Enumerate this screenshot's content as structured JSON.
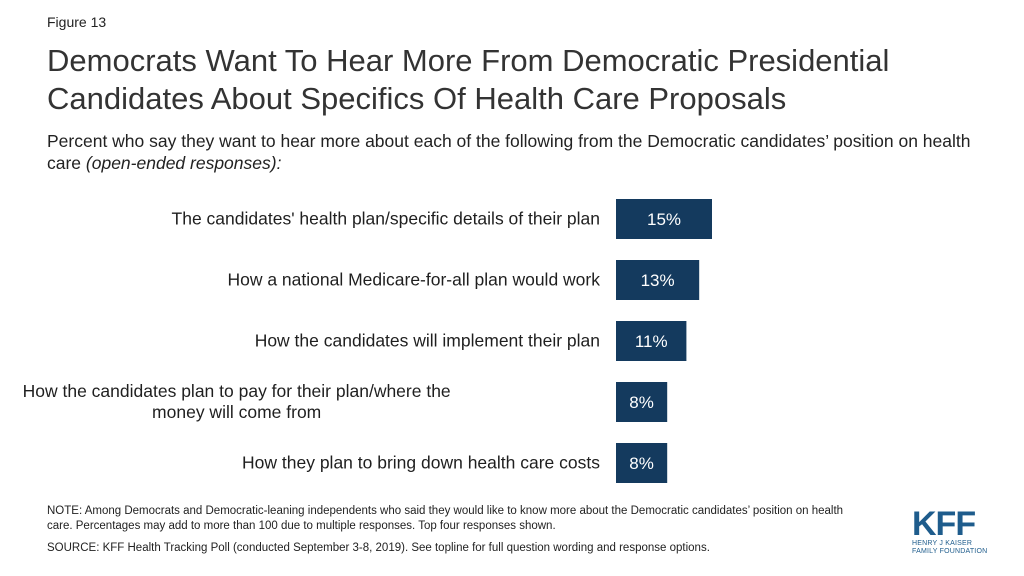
{
  "figure_label": "Figure 13",
  "title": "Democrats Want To Hear More From Democratic Presidential Candidates About Specifics Of Health Care Proposals",
  "subtitle_main": "Percent who say they want to hear more about each of the following from the Democratic candidates’ position on health care ",
  "subtitle_italic": "(open-ended responses):",
  "note": "NOTE: Among Democrats and Democratic-leaning independents who said they would like to know more about the Democratic candidates’ position on health care. Percentages may add to more than 100 due to multiple responses. Top four responses shown.",
  "source": "SOURCE: KFF Health Tracking Poll (conducted September 3-8, 2019). See topline for full question wording and response options.",
  "logo": {
    "mark": "KFF",
    "line1": "HENRY J KAISER",
    "line2": "FAMILY FOUNDATION"
  },
  "colors": {
    "bar": "#143a5e",
    "bar_label": "#ffffff",
    "category_text": "#1f1f1f"
  },
  "chart_data": {
    "type": "bar",
    "orientation": "horizontal",
    "categories": [
      [
        "The candidates' health plan/specific details of their plan"
      ],
      [
        "How a national Medicare-for-all plan would work"
      ],
      [
        "How the candidates will implement their plan"
      ],
      [
        "How the candidates plan to pay for their plan/where the",
        "money will come from"
      ],
      [
        "How they plan to bring down health care costs"
      ]
    ],
    "values": [
      15,
      13,
      11,
      8,
      8
    ],
    "value_labels": [
      "15%",
      "13%",
      "11%",
      "8%",
      "8%"
    ],
    "xlim": [
      0,
      100
    ],
    "grid": false,
    "legend": "none"
  }
}
